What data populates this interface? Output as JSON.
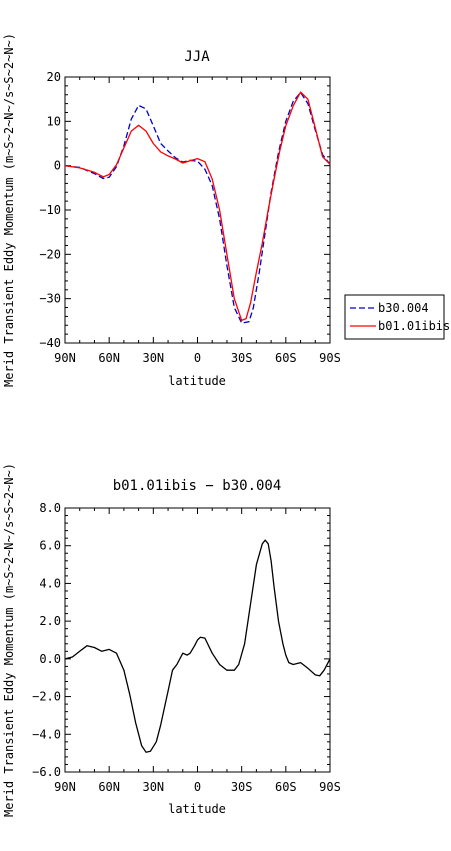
{
  "chart_data": [
    {
      "type": "line",
      "title": "JJA",
      "xlabel": "latitude",
      "ylabel": "Merid Transient Eddy Momentum (m~S~2~N~/s~S~2~N~)",
      "xlim": [
        90,
        -90
      ],
      "ylim": [
        -40,
        20
      ],
      "x_ticks": [
        90,
        60,
        30,
        0,
        -30,
        -60,
        -90
      ],
      "x_tick_labels": [
        "90N",
        "60N",
        "30N",
        "0",
        "30S",
        "60S",
        "90S"
      ],
      "y_ticks": [
        -40,
        -30,
        -20,
        -10,
        0,
        10,
        20
      ],
      "y_tick_labels": [
        "−40",
        "−30",
        "−20",
        "−10",
        "0",
        "10",
        "20"
      ],
      "grid": false,
      "legend": "right",
      "series": [
        {
          "name": "b30.004",
          "color": "#0000cc",
          "dash": "dashed",
          "x": [
            90,
            80,
            70,
            64,
            60,
            55,
            50,
            45,
            40,
            35,
            30,
            25,
            20,
            15,
            10,
            5,
            0,
            -5,
            -10,
            -15,
            -20,
            -25,
            -30,
            -35,
            -38,
            -42,
            -46,
            -50,
            -55,
            -60,
            -65,
            -70,
            -75,
            -80,
            -85,
            -90
          ],
          "y": [
            0,
            -0.4,
            -1.8,
            -2.9,
            -2.6,
            -0.2,
            4.5,
            10.5,
            13.6,
            12.8,
            9.0,
            5.0,
            3.3,
            1.8,
            0.8,
            1.2,
            1.0,
            -0.8,
            -4.5,
            -12.0,
            -22.5,
            -32.0,
            -35.5,
            -35.2,
            -32.0,
            -24.0,
            -15.0,
            -6.0,
            3.0,
            10.0,
            14.5,
            16.5,
            14.0,
            8.0,
            2.5,
            0.3
          ]
        },
        {
          "name": "b01.01ibis",
          "color": "#ff0000",
          "dash": "solid",
          "x": [
            90,
            80,
            70,
            64,
            60,
            55,
            50,
            45,
            40,
            35,
            30,
            25,
            20,
            15,
            10,
            5,
            0,
            -5,
            -10,
            -15,
            -20,
            -25,
            -30,
            -33,
            -36,
            -40,
            -44,
            -48,
            -52,
            -56,
            -60,
            -65,
            -70,
            -75,
            -80,
            -85,
            -90
          ],
          "y": [
            0,
            -0.5,
            -1.5,
            -2.5,
            -2.0,
            0.2,
            4.0,
            7.8,
            9.1,
            7.8,
            5.0,
            3.1,
            2.2,
            1.5,
            0.6,
            1.1,
            1.6,
            0.9,
            -3.0,
            -10.0,
            -20.0,
            -30.0,
            -34.9,
            -34.5,
            -31.0,
            -24.0,
            -17.5,
            -10.0,
            -3.0,
            3.5,
            9.0,
            13.5,
            16.6,
            15.0,
            8.5,
            2.0,
            0.3
          ]
        }
      ]
    },
    {
      "type": "line",
      "title": "b01.01ibis − b30.004",
      "xlabel": "latitude",
      "ylabel": "Merid Transient Eddy Momentum (m~S~2~N~/s~S~2~N~)",
      "xlim": [
        90,
        -90
      ],
      "ylim": [
        -6,
        8
      ],
      "x_ticks": [
        90,
        60,
        30,
        0,
        -30,
        -60,
        -90
      ],
      "x_tick_labels": [
        "90N",
        "60N",
        "30N",
        "0",
        "30S",
        "60S",
        "90S"
      ],
      "y_ticks": [
        -6,
        -4,
        -2,
        0,
        2,
        4,
        6,
        8
      ],
      "y_tick_labels": [
        "−6.0",
        "−4.0",
        "−2.0",
        "0.0",
        "2.0",
        "4.0",
        "6.0",
        "8.0"
      ],
      "grid": false,
      "series": [
        {
          "color": "#000000",
          "dash": "solid",
          "x": [
            90,
            85,
            80,
            75,
            70,
            65,
            60,
            55,
            50,
            46,
            42,
            38,
            35,
            32,
            28,
            25,
            20,
            17,
            14,
            10,
            7,
            5,
            2,
            0,
            -2,
            -5,
            -10,
            -15,
            -20,
            -25,
            -28,
            -32,
            -36,
            -40,
            -44,
            -46,
            -48,
            -50,
            -52,
            -55,
            -58,
            -60,
            -62,
            -65,
            -70,
            -75,
            -80,
            -83,
            -86,
            -90
          ],
          "y": [
            0,
            0.1,
            0.4,
            0.7,
            0.6,
            0.4,
            0.5,
            0.3,
            -0.6,
            -1.9,
            -3.4,
            -4.6,
            -4.95,
            -4.9,
            -4.4,
            -3.5,
            -1.7,
            -0.6,
            -0.3,
            0.3,
            0.2,
            0.3,
            0.7,
            1.0,
            1.15,
            1.1,
            0.3,
            -0.3,
            -0.6,
            -0.6,
            -0.3,
            0.8,
            2.9,
            5.0,
            6.1,
            6.3,
            6.1,
            5.2,
            3.8,
            2.0,
            0.8,
            0.2,
            -0.2,
            -0.3,
            -0.2,
            -0.5,
            -0.85,
            -0.9,
            -0.6,
            0
          ]
        }
      ]
    }
  ]
}
